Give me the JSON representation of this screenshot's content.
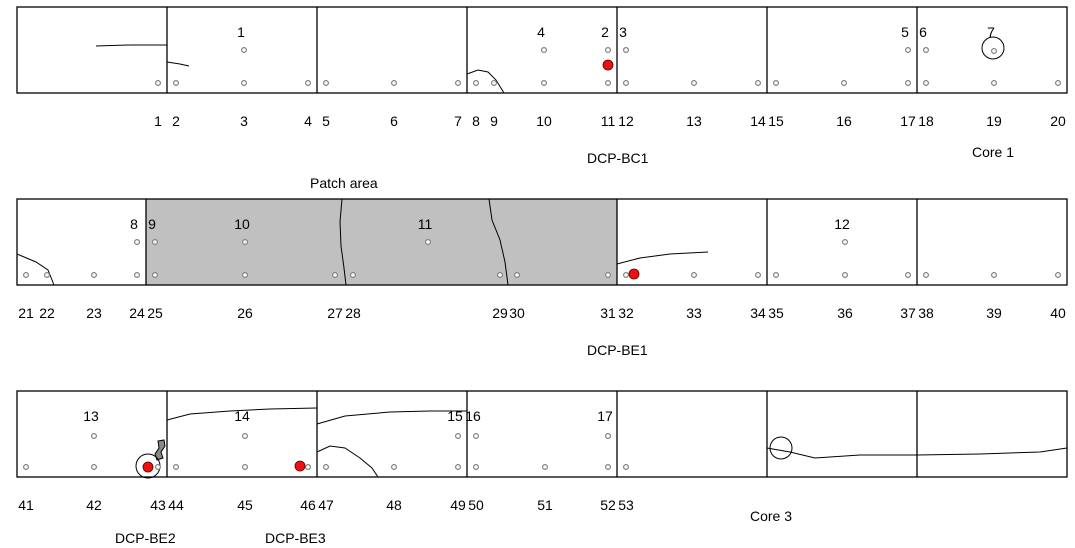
{
  "title": "",
  "annotations": {
    "patch_area": "Patch area",
    "dcp_bc1": "DCP-BC1",
    "dcp_be1": "DCP-BE1",
    "dcp_be2": "DCP-BE2",
    "dcp_be3": "DCP-BE3",
    "core1": "Core 1",
    "core3": "Core 3"
  },
  "colors": {
    "line": "#000000",
    "patch_fill": "#c0c0c0",
    "dcp_marker": "#ee1111",
    "point_marker": "#808080"
  },
  "strips": [
    {
      "row": 1,
      "bottom_labels": [
        "1",
        "2",
        "3",
        "4",
        "5",
        "6",
        "7",
        "8",
        "9",
        "10",
        "11",
        "12",
        "13",
        "14",
        "15",
        "16",
        "17",
        "18",
        "19",
        "20"
      ],
      "slab_numbers": [
        "1",
        "2",
        "3",
        "4",
        "5",
        "6",
        "7"
      ]
    },
    {
      "row": 2,
      "bottom_labels": [
        "21",
        "22",
        "23",
        "24",
        "25",
        "26",
        "27",
        "28",
        "29",
        "30",
        "31",
        "32",
        "33",
        "34",
        "35",
        "36",
        "37",
        "38",
        "39",
        "40"
      ],
      "slab_numbers": [
        "8",
        "9",
        "10",
        "11",
        "12"
      ]
    },
    {
      "row": 3,
      "bottom_labels": [
        "41",
        "42",
        "43",
        "44",
        "45",
        "46",
        "47",
        "48",
        "49",
        "50",
        "51",
        "52",
        "53"
      ],
      "slab_numbers": [
        "13",
        "14",
        "15",
        "16",
        "17"
      ]
    }
  ]
}
